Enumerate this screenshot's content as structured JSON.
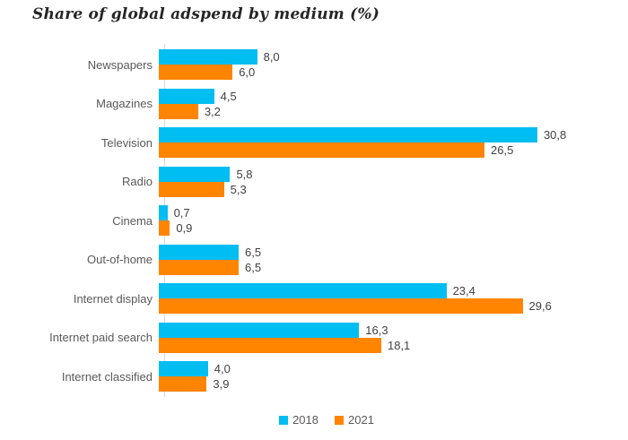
{
  "title": "Share of global adspend by medium (%)",
  "chart_data": {
    "type": "bar",
    "orientation": "horizontal",
    "title": "Share of global adspend by medium (%)",
    "categories": [
      "Newspapers",
      "Magazines",
      "Television",
      "Radio",
      "Cinema",
      "Out-of-home",
      "Internet display",
      "Internet paid search",
      "Internet classified"
    ],
    "series": [
      {
        "name": "2018",
        "color": "#00BDF2",
        "values": [
          8.0,
          4.5,
          30.8,
          5.8,
          0.7,
          6.5,
          23.4,
          16.3,
          4.0
        ],
        "labels": [
          "8,0",
          "4,5",
          "30,8",
          "5,8",
          "0,7",
          "6,5",
          "23,4",
          "16,3",
          "4,0"
        ]
      },
      {
        "name": "2021",
        "color": "#FF8400",
        "values": [
          6.0,
          3.2,
          26.5,
          5.3,
          0.9,
          6.5,
          29.6,
          18.1,
          3.9
        ],
        "labels": [
          "6,0",
          "3,2",
          "26,5",
          "5,3",
          "0,9",
          "6,5",
          "29,6",
          "18,1",
          "3,9"
        ]
      }
    ],
    "value_axis_max": 32,
    "grid": false,
    "value_labels_shown": true,
    "legend_position": "bottom"
  },
  "legend": {
    "items": [
      {
        "label": "2018",
        "color": "#00BDF2"
      },
      {
        "label": "2021",
        "color": "#FF8400"
      }
    ]
  },
  "colors": {
    "series_2018": "#00BDF2",
    "series_2021": "#FF8400",
    "axis_line": "#D9D9D9",
    "category_text": "#595959",
    "value_text": "#404040",
    "title_text": "#262626",
    "background": "#FFFFFF"
  }
}
